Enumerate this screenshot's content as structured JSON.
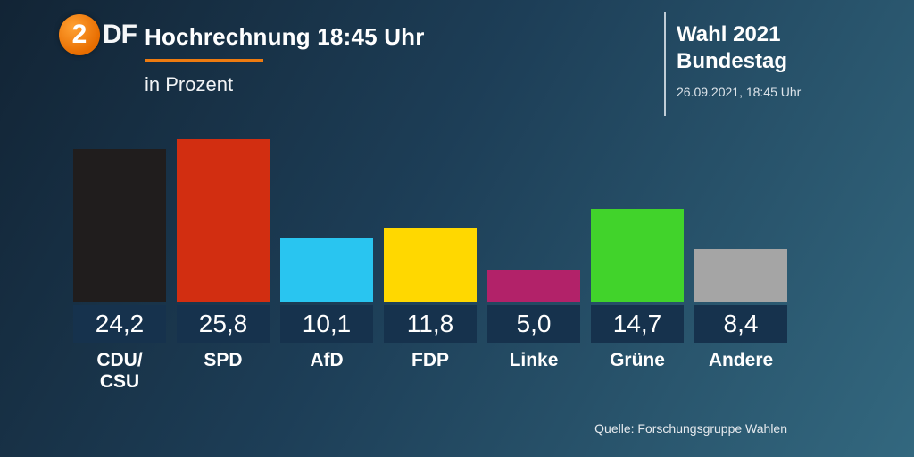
{
  "accent_color": "#ee7b10",
  "header": {
    "logo": {
      "circle_text": "2",
      "rest_text": "DF"
    },
    "title": "Hochrechnung 18:45 Uhr",
    "subtitle": "in Prozent",
    "election": {
      "line1": "Wahl 2021",
      "line2": "Bundestag",
      "date": "26.09.2021, 18:45 Uhr"
    }
  },
  "footer": {
    "source": "Quelle: Forschungsgruppe Wahlen"
  },
  "chart_data": {
    "type": "bar",
    "title": "Hochrechnung 18:45 Uhr",
    "subtitle": "in Prozent",
    "unit": "Prozent",
    "categories": [
      "CDU/\nCSU",
      "SPD",
      "AfD",
      "FDP",
      "Linke",
      "Grüne",
      "Andere"
    ],
    "values": [
      24.2,
      25.8,
      10.1,
      11.8,
      5.0,
      14.7,
      8.4
    ],
    "value_labels": [
      "24,2",
      "25,8",
      "10,1",
      "11,8",
      "5,0",
      "14,7",
      "8,4"
    ],
    "colors": [
      "#201d1d",
      "#d22e11",
      "#29c5f0",
      "#ffd800",
      "#b22269",
      "#41d32b",
      "#a5a5a5"
    ],
    "ylim": [
      0,
      26
    ],
    "grid": false,
    "legend": false,
    "source": "Quelle: Forschungsgruppe Wahlen"
  }
}
